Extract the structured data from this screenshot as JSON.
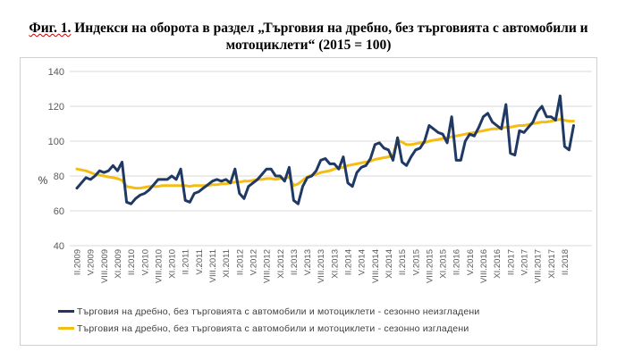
{
  "title": {
    "fig_label": "Фиг. 1.",
    "text": " Индекси на оборота в раздел „Търговия на дребно, без търговията с автомобили и мотоциклети“ (2015 = 100)"
  },
  "chart_data": {
    "type": "line",
    "ylabel": "%",
    "xlabel": "",
    "ylim": [
      40,
      140
    ],
    "yticks": [
      40,
      60,
      80,
      100,
      120,
      140
    ],
    "grid": true,
    "legend_position": "bottom",
    "x": [
      "II.2009",
      "III.2009",
      "IV.2009",
      "V.2009",
      "VI.2009",
      "VII.2009",
      "VIII.2009",
      "IX.2009",
      "X.2009",
      "XI.2009",
      "XII.2009",
      "I.2010",
      "II.2010",
      "III.2010",
      "IV.2010",
      "V.2010",
      "VI.2010",
      "VII.2010",
      "VIII.2010",
      "IX.2010",
      "X.2010",
      "XI.2010",
      "XII.2010",
      "I.2011",
      "II.2011",
      "III.2011",
      "IV.2011",
      "V.2011",
      "VI.2011",
      "VII.2011",
      "VIII.2011",
      "IX.2011",
      "X.2011",
      "XI.2011",
      "XII.2011",
      "I.2012",
      "II.2012",
      "III.2012",
      "IV.2012",
      "V.2012",
      "VI.2012",
      "VII.2012",
      "VIII.2012",
      "IX.2012",
      "X.2012",
      "XI.2012",
      "XII.2012",
      "I.2013",
      "II.2013",
      "III.2013",
      "IV.2013",
      "V.2013",
      "VI.2013",
      "VII.2013",
      "VIII.2013",
      "IX.2013",
      "X.2013",
      "XI.2013",
      "XII.2013",
      "I.2014",
      "II.2014",
      "III.2014",
      "IV.2014",
      "V.2014",
      "VI.2014",
      "VII.2014",
      "VIII.2014",
      "IX.2014",
      "X.2014",
      "XI.2014",
      "XII.2014",
      "I.2015",
      "II.2015",
      "III.2015",
      "IV.2015",
      "V.2015",
      "VI.2015",
      "VII.2015",
      "VIII.2015",
      "IX.2015",
      "X.2015",
      "XI.2015",
      "XII.2015",
      "I.2016",
      "II.2016",
      "III.2016",
      "IV.2016",
      "V.2016",
      "VI.2016",
      "VII.2016",
      "VIII.2016",
      "IX.2016",
      "X.2016",
      "XI.2016",
      "XII.2016",
      "I.2017",
      "II.2017",
      "III.2017",
      "IV.2017",
      "V.2017",
      "VI.2017",
      "VII.2017",
      "VIII.2017",
      "IX.2017",
      "X.2017",
      "XI.2017",
      "XII.2017",
      "I.2018",
      "II.2018",
      "III.2018",
      "IV.2018"
    ],
    "tick_labels": [
      "II.2009",
      "V.2009",
      "VIII.2009",
      "XI.2009",
      "II.2010",
      "V.2010",
      "VIII.2010",
      "XI.2010",
      "II.2011",
      "V.2011",
      "VIII.2011",
      "XI.2011",
      "II.2012",
      "V.2012",
      "VIII.2012",
      "XI.2012",
      "II.2013",
      "V.2013",
      "VIII.2013",
      "XI.2013",
      "II.2014",
      "V.2014",
      "VIII.2014",
      "XI.2014",
      "II.2015",
      "V.2015",
      "VIII.2015",
      "XI.2015",
      "II.2016",
      "V.2016",
      "VIII.2016",
      "XI.2016",
      "II.2017",
      "V.2017",
      "VIII.2017",
      "XI.2017",
      "II.2018"
    ],
    "series": [
      {
        "name": "Търговия на дребно, без търговията с автомобили и мотоциклети - сезонно неизгладени",
        "color": "#1f3864",
        "values": [
          73,
          76,
          79,
          78,
          80,
          83,
          82,
          83,
          86,
          83,
          88,
          65,
          64,
          67,
          69,
          70,
          72,
          75,
          78,
          78,
          78,
          80,
          78,
          84,
          66,
          65,
          70,
          71,
          73,
          75,
          77,
          78,
          77,
          78,
          76,
          84,
          70,
          67,
          74,
          76,
          78,
          81,
          84,
          84,
          80,
          80,
          77,
          85,
          66,
          64,
          74,
          79,
          80,
          83,
          89,
          90,
          87,
          87,
          84,
          91,
          76,
          74,
          82,
          85,
          86,
          90,
          98,
          99,
          96,
          95,
          89,
          102,
          88,
          86,
          91,
          95,
          96,
          100,
          109,
          107,
          105,
          104,
          99,
          114,
          89,
          89,
          100,
          104,
          103,
          108,
          114,
          116,
          111,
          109,
          107,
          121,
          93,
          92,
          106,
          105,
          108,
          111,
          117,
          120,
          114,
          114,
          112,
          126,
          97,
          95,
          109
        ]
      },
      {
        "name": "Търговия на дребно, без търговията с автомобили и мотоциклети - сезонно изгладени",
        "color": "#f5bd12",
        "values": [
          84,
          83.5,
          83,
          82,
          81,
          80.5,
          80,
          79.5,
          79,
          78.5,
          77.5,
          74,
          73.5,
          73,
          73,
          73.5,
          74,
          74,
          74,
          74.5,
          74.5,
          74.5,
          74.5,
          74.5,
          74.5,
          74,
          74.5,
          74.5,
          74.5,
          74.5,
          75,
          75,
          75.5,
          75.5,
          76,
          76.5,
          76.5,
          77,
          77,
          77.5,
          78,
          78,
          78.5,
          78.5,
          78,
          78.5,
          78.5,
          79.5,
          74.5,
          75.5,
          77.5,
          79.5,
          80.5,
          81,
          82,
          82.5,
          83,
          84,
          84.5,
          85,
          86,
          86.5,
          87,
          87.5,
          88,
          88.5,
          89.5,
          90,
          90.5,
          91,
          92,
          100.5,
          99.5,
          98,
          98,
          98.5,
          99,
          99,
          100,
          100.5,
          101,
          101.5,
          102,
          102.5,
          103,
          103.5,
          104,
          104.5,
          105,
          105.5,
          106,
          106.5,
          107,
          107,
          107.5,
          108,
          108,
          108.5,
          109,
          109,
          109.5,
          110,
          110.5,
          111,
          111,
          111.5,
          112,
          112.5,
          112,
          111.5,
          111.5
        ]
      }
    ]
  }
}
